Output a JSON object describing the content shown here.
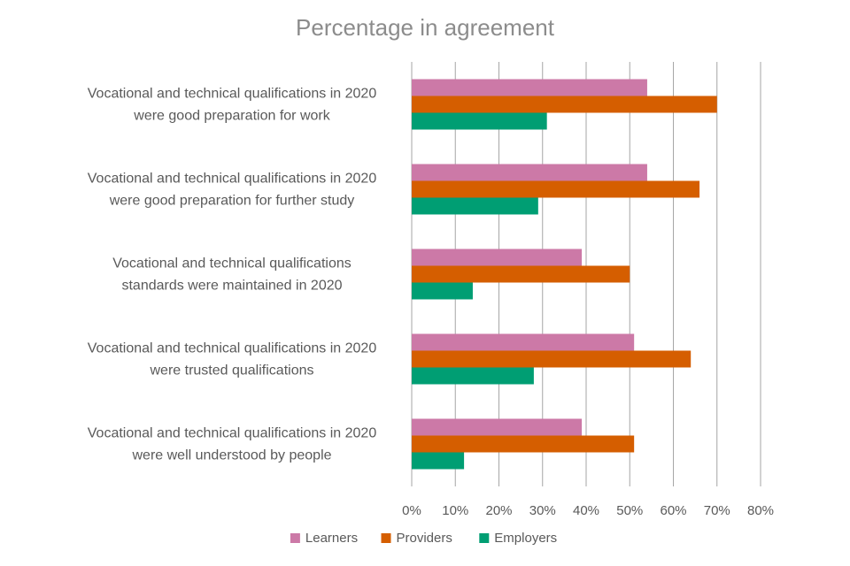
{
  "chart_data": {
    "type": "bar",
    "orientation": "horizontal",
    "title": "Percentage in agreement",
    "categories": [
      [
        "Vocational and technical qualifications in 2020",
        "were good preparation for work"
      ],
      [
        "Vocational and technical qualifications in 2020",
        "were good preparation for further study"
      ],
      [
        "Vocational and technical qualifications",
        "standards were maintained in 2020"
      ],
      [
        "Vocational and technical qualifications in 2020",
        "were trusted qualifications"
      ],
      [
        "Vocational and technical qualifications in 2020",
        "were well understood by people"
      ]
    ],
    "series": [
      {
        "name": "Learners",
        "color": "#cc79a7",
        "values": [
          54,
          54,
          39,
          51,
          39
        ]
      },
      {
        "name": "Providers",
        "color": "#d55e00",
        "values": [
          70,
          66,
          50,
          64,
          51
        ]
      },
      {
        "name": "Employers",
        "color": "#009e73",
        "values": [
          31,
          29,
          14,
          28,
          12
        ]
      }
    ],
    "xlim": [
      0,
      80
    ],
    "xticks": [
      0,
      10,
      20,
      30,
      40,
      50,
      60,
      70,
      80
    ],
    "xtick_labels": [
      "0%",
      "10%",
      "20%",
      "30%",
      "40%",
      "50%",
      "60%",
      "70%",
      "80%"
    ],
    "grid": true,
    "legend_position": "bottom"
  }
}
